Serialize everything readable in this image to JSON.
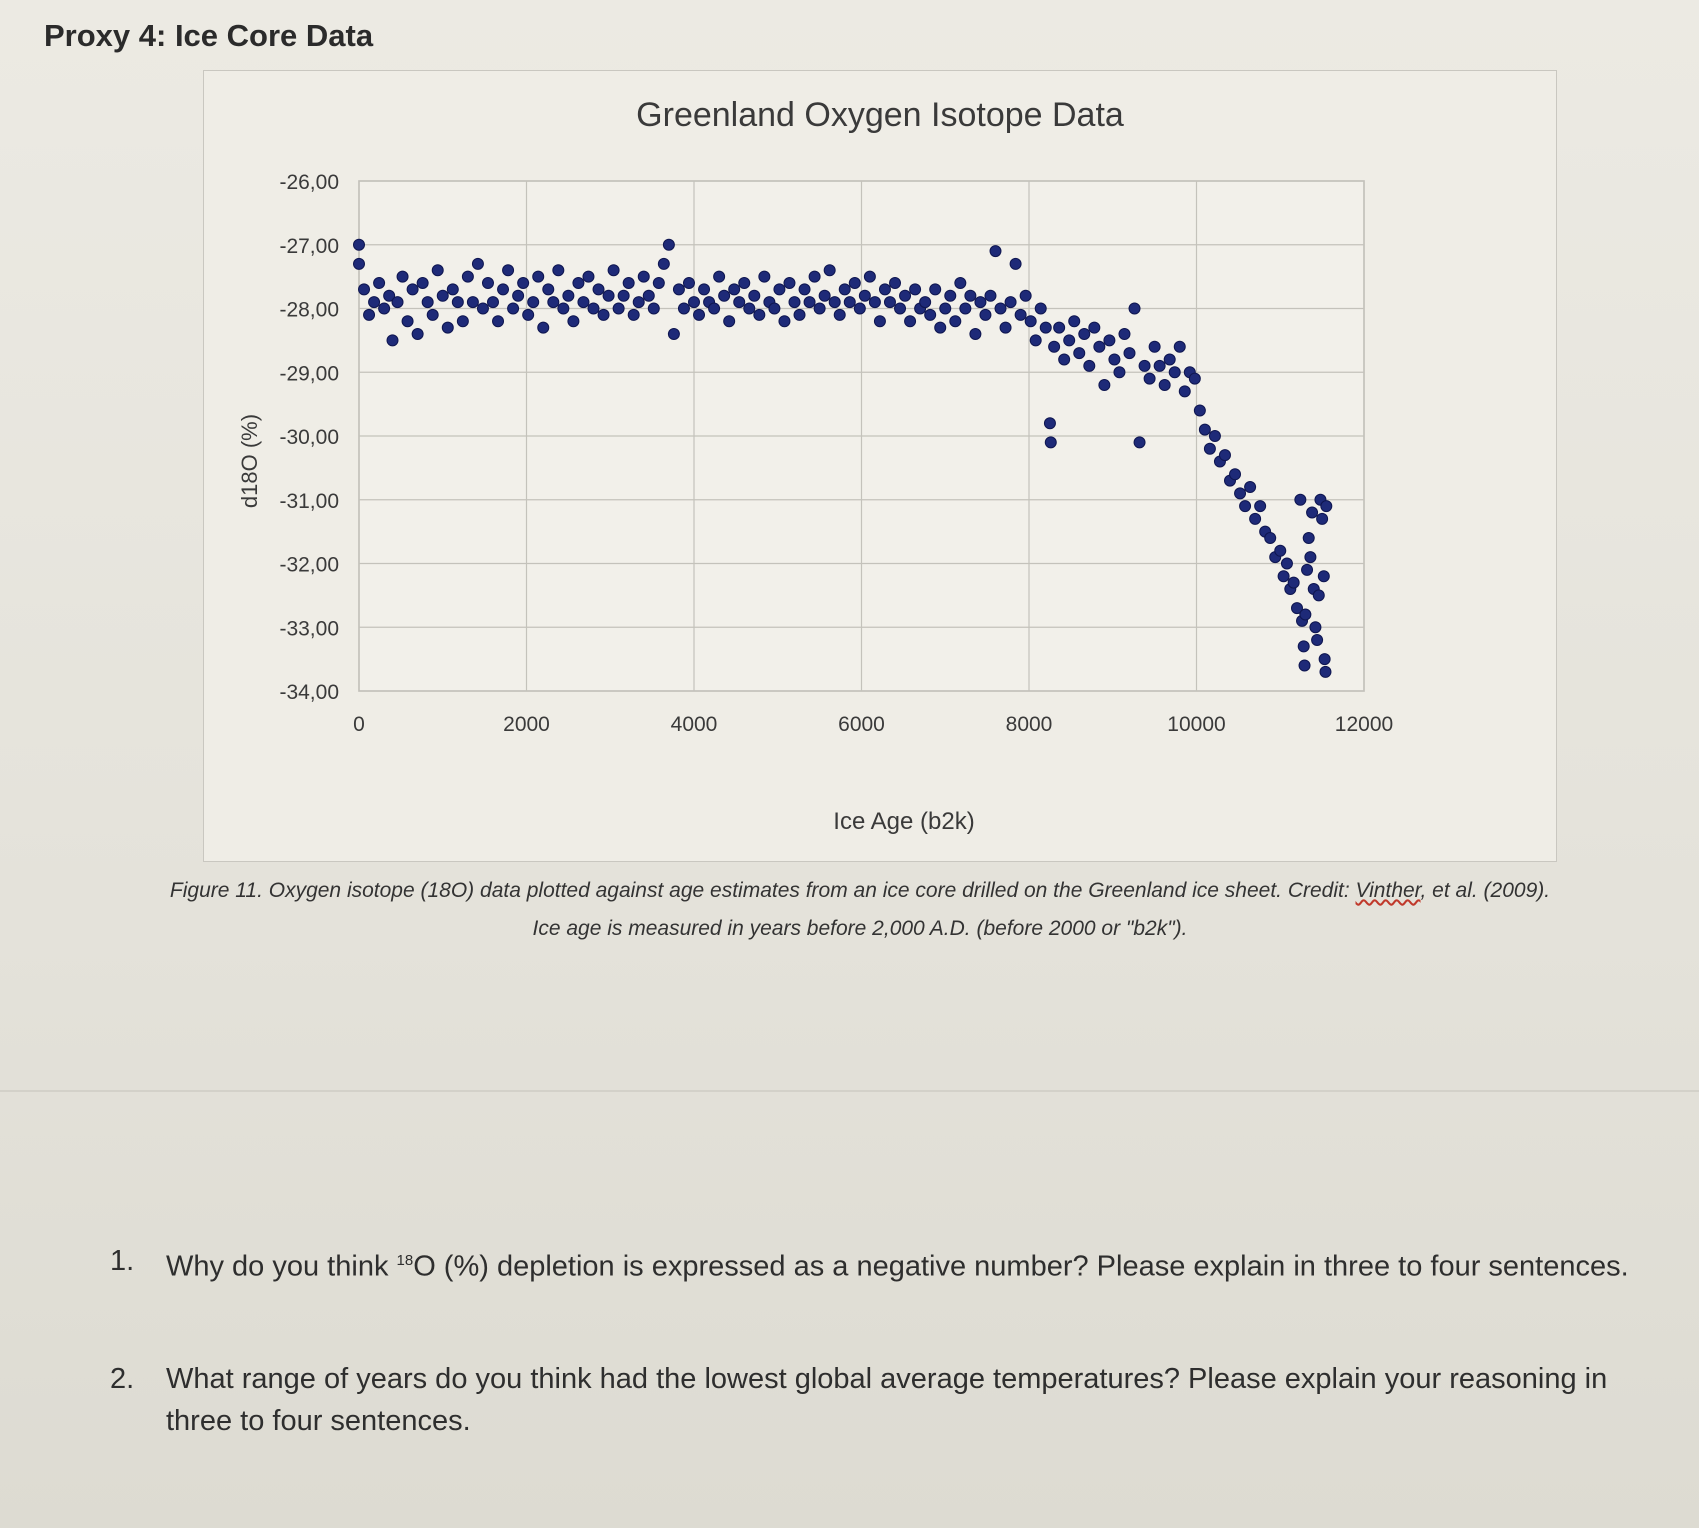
{
  "section": {
    "title": "Proxy 4: Ice Core Data"
  },
  "chart_data": {
    "type": "scatter",
    "title": "Greenland Oxygen Isotope Data",
    "xlabel": "Ice Age (b2k)",
    "ylabel": "d18O (%)",
    "xlim": [
      0,
      12000
    ],
    "ylim": [
      -34,
      -26
    ],
    "xticks": [
      "0",
      "2000",
      "4000",
      "6000",
      "8000",
      "10000",
      "12000"
    ],
    "yticks": [
      "-26,00",
      "-27,00",
      "-28,00",
      "-29,00",
      "-30,00",
      "-31,00",
      "-32,00",
      "-33,00",
      "-34,00"
    ],
    "grid": true,
    "marker_color": "#1e2a78",
    "points": [
      [
        0,
        -27.0
      ],
      [
        0,
        -27.3
      ],
      [
        60,
        -27.7
      ],
      [
        120,
        -28.1
      ],
      [
        180,
        -27.9
      ],
      [
        240,
        -27.6
      ],
      [
        300,
        -28.0
      ],
      [
        360,
        -27.8
      ],
      [
        400,
        -28.5
      ],
      [
        460,
        -27.9
      ],
      [
        520,
        -27.5
      ],
      [
        580,
        -28.2
      ],
      [
        640,
        -27.7
      ],
      [
        700,
        -28.4
      ],
      [
        760,
        -27.6
      ],
      [
        820,
        -27.9
      ],
      [
        880,
        -28.1
      ],
      [
        940,
        -27.4
      ],
      [
        1000,
        -27.8
      ],
      [
        1060,
        -28.3
      ],
      [
        1120,
        -27.7
      ],
      [
        1180,
        -27.9
      ],
      [
        1240,
        -28.2
      ],
      [
        1300,
        -27.5
      ],
      [
        1360,
        -27.9
      ],
      [
        1420,
        -27.3
      ],
      [
        1480,
        -28.0
      ],
      [
        1540,
        -27.6
      ],
      [
        1600,
        -27.9
      ],
      [
        1660,
        -28.2
      ],
      [
        1720,
        -27.7
      ],
      [
        1780,
        -27.4
      ],
      [
        1840,
        -28.0
      ],
      [
        1900,
        -27.8
      ],
      [
        1960,
        -27.6
      ],
      [
        2020,
        -28.1
      ],
      [
        2080,
        -27.9
      ],
      [
        2140,
        -27.5
      ],
      [
        2200,
        -28.3
      ],
      [
        2260,
        -27.7
      ],
      [
        2320,
        -27.9
      ],
      [
        2380,
        -27.4
      ],
      [
        2440,
        -28.0
      ],
      [
        2500,
        -27.8
      ],
      [
        2560,
        -28.2
      ],
      [
        2620,
        -27.6
      ],
      [
        2680,
        -27.9
      ],
      [
        2740,
        -27.5
      ],
      [
        2800,
        -28.0
      ],
      [
        2860,
        -27.7
      ],
      [
        2920,
        -28.1
      ],
      [
        2980,
        -27.8
      ],
      [
        3040,
        -27.4
      ],
      [
        3100,
        -28.0
      ],
      [
        3160,
        -27.8
      ],
      [
        3220,
        -27.6
      ],
      [
        3280,
        -28.1
      ],
      [
        3340,
        -27.9
      ],
      [
        3400,
        -27.5
      ],
      [
        3460,
        -27.8
      ],
      [
        3520,
        -28.0
      ],
      [
        3580,
        -27.6
      ],
      [
        3640,
        -27.3
      ],
      [
        3700,
        -27.0
      ],
      [
        3760,
        -28.4
      ],
      [
        3820,
        -27.7
      ],
      [
        3880,
        -28.0
      ],
      [
        3940,
        -27.6
      ],
      [
        4000,
        -27.9
      ],
      [
        4060,
        -28.1
      ],
      [
        4120,
        -27.7
      ],
      [
        4180,
        -27.9
      ],
      [
        4240,
        -28.0
      ],
      [
        4300,
        -27.5
      ],
      [
        4360,
        -27.8
      ],
      [
        4420,
        -28.2
      ],
      [
        4480,
        -27.7
      ],
      [
        4540,
        -27.9
      ],
      [
        4600,
        -27.6
      ],
      [
        4660,
        -28.0
      ],
      [
        4720,
        -27.8
      ],
      [
        4780,
        -28.1
      ],
      [
        4840,
        -27.5
      ],
      [
        4900,
        -27.9
      ],
      [
        4960,
        -28.0
      ],
      [
        5020,
        -27.7
      ],
      [
        5080,
        -28.2
      ],
      [
        5140,
        -27.6
      ],
      [
        5200,
        -27.9
      ],
      [
        5260,
        -28.1
      ],
      [
        5320,
        -27.7
      ],
      [
        5380,
        -27.9
      ],
      [
        5440,
        -27.5
      ],
      [
        5500,
        -28.0
      ],
      [
        5560,
        -27.8
      ],
      [
        5620,
        -27.4
      ],
      [
        5680,
        -27.9
      ],
      [
        5740,
        -28.1
      ],
      [
        5800,
        -27.7
      ],
      [
        5860,
        -27.9
      ],
      [
        5920,
        -27.6
      ],
      [
        5980,
        -28.0
      ],
      [
        6040,
        -27.8
      ],
      [
        6100,
        -27.5
      ],
      [
        6160,
        -27.9
      ],
      [
        6220,
        -28.2
      ],
      [
        6280,
        -27.7
      ],
      [
        6340,
        -27.9
      ],
      [
        6400,
        -27.6
      ],
      [
        6460,
        -28.0
      ],
      [
        6520,
        -27.8
      ],
      [
        6580,
        -28.2
      ],
      [
        6640,
        -27.7
      ],
      [
        6700,
        -28.0
      ],
      [
        6760,
        -27.9
      ],
      [
        6820,
        -28.1
      ],
      [
        6880,
        -27.7
      ],
      [
        6940,
        -28.3
      ],
      [
        7000,
        -28.0
      ],
      [
        7060,
        -27.8
      ],
      [
        7120,
        -28.2
      ],
      [
        7180,
        -27.6
      ],
      [
        7240,
        -28.0
      ],
      [
        7300,
        -27.8
      ],
      [
        7360,
        -28.4
      ],
      [
        7420,
        -27.9
      ],
      [
        7480,
        -28.1
      ],
      [
        7540,
        -27.8
      ],
      [
        7600,
        -27.1
      ],
      [
        7660,
        -28.0
      ],
      [
        7720,
        -28.3
      ],
      [
        7780,
        -27.9
      ],
      [
        7840,
        -27.3
      ],
      [
        7900,
        -28.1
      ],
      [
        7960,
        -27.8
      ],
      [
        8020,
        -28.2
      ],
      [
        8080,
        -28.5
      ],
      [
        8140,
        -28.0
      ],
      [
        8200,
        -28.3
      ],
      [
        8250,
        -29.8
      ],
      [
        8260,
        -30.1
      ],
      [
        8300,
        -28.6
      ],
      [
        8360,
        -28.3
      ],
      [
        8420,
        -28.8
      ],
      [
        8480,
        -28.5
      ],
      [
        8540,
        -28.2
      ],
      [
        8600,
        -28.7
      ],
      [
        8660,
        -28.4
      ],
      [
        8720,
        -28.9
      ],
      [
        8780,
        -28.3
      ],
      [
        8840,
        -28.6
      ],
      [
        8900,
        -29.2
      ],
      [
        8960,
        -28.5
      ],
      [
        9020,
        -28.8
      ],
      [
        9080,
        -29.0
      ],
      [
        9140,
        -28.4
      ],
      [
        9200,
        -28.7
      ],
      [
        9260,
        -28.0
      ],
      [
        9320,
        -30.1
      ],
      [
        9380,
        -28.9
      ],
      [
        9440,
        -29.1
      ],
      [
        9500,
        -28.6
      ],
      [
        9560,
        -28.9
      ],
      [
        9620,
        -29.2
      ],
      [
        9680,
        -28.8
      ],
      [
        9740,
        -29.0
      ],
      [
        9800,
        -28.6
      ],
      [
        9860,
        -29.3
      ],
      [
        9920,
        -29.0
      ],
      [
        9980,
        -29.1
      ],
      [
        10040,
        -29.6
      ],
      [
        10100,
        -29.9
      ],
      [
        10160,
        -30.2
      ],
      [
        10220,
        -30.0
      ],
      [
        10280,
        -30.4
      ],
      [
        10340,
        -30.3
      ],
      [
        10400,
        -30.7
      ],
      [
        10460,
        -30.6
      ],
      [
        10520,
        -30.9
      ],
      [
        10580,
        -31.1
      ],
      [
        10640,
        -30.8
      ],
      [
        10700,
        -31.3
      ],
      [
        10760,
        -31.1
      ],
      [
        10820,
        -31.5
      ],
      [
        10880,
        -31.6
      ],
      [
        10940,
        -31.9
      ],
      [
        11000,
        -31.8
      ],
      [
        11040,
        -32.2
      ],
      [
        11080,
        -32.0
      ],
      [
        11120,
        -32.4
      ],
      [
        11160,
        -32.3
      ],
      [
        11200,
        -32.7
      ],
      [
        11240,
        -31.0
      ],
      [
        11260,
        -32.9
      ],
      [
        11280,
        -33.3
      ],
      [
        11290,
        -33.6
      ],
      [
        11300,
        -32.8
      ],
      [
        11320,
        -32.1
      ],
      [
        11340,
        -31.6
      ],
      [
        11360,
        -31.9
      ],
      [
        11380,
        -31.2
      ],
      [
        11400,
        -32.4
      ],
      [
        11420,
        -33.0
      ],
      [
        11440,
        -33.2
      ],
      [
        11460,
        -32.5
      ],
      [
        11480,
        -31.0
      ],
      [
        11500,
        -31.3
      ],
      [
        11520,
        -32.2
      ],
      [
        11530,
        -33.5
      ],
      [
        11540,
        -33.7
      ],
      [
        11550,
        -31.1
      ]
    ]
  },
  "figure_caption": {
    "label": "Figure 11.",
    "line1_a": " Oxygen isotope (18O) data plotted against age estimates from an ice core drilled on the Greenland ice sheet. Credit: ",
    "credit_name": "Vinther",
    "line1_b": ", et al. (2009).",
    "line2": "Ice age is measured in years before 2,000 A.D. (before 2000 or \"b2k\")."
  },
  "questions": [
    {
      "num": "1.",
      "pre": "Why do you think ",
      "sup": "18",
      "post": "O (%) depletion is expressed as a negative number? Please explain in three to four sentences."
    },
    {
      "num": "2.",
      "pre": "What range of years do you think had the lowest global average temperatures? Please explain your reasoning in three to four sentences.",
      "sup": "",
      "post": ""
    }
  ]
}
